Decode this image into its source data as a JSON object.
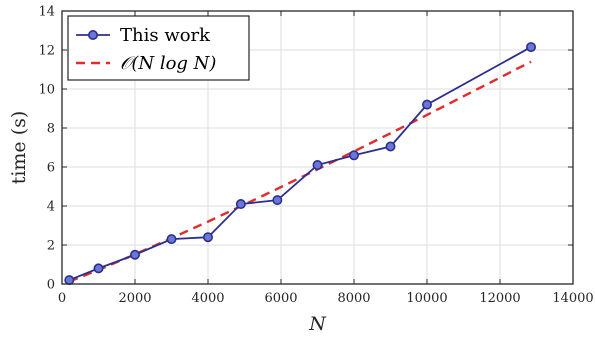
{
  "chart_data": {
    "type": "line",
    "title": "",
    "xlabel": "N",
    "ylabel": "time (s)",
    "xlim": [
      0,
      14000
    ],
    "ylim": [
      0,
      14
    ],
    "xticks": [
      0,
      2000,
      4000,
      6000,
      8000,
      10000,
      12000,
      14000
    ],
    "yticks": [
      0,
      2,
      4,
      6,
      8,
      10,
      12,
      14
    ],
    "grid": true,
    "legend_position": "top-left",
    "series": [
      {
        "name": "This work",
        "style": "solid line with circle markers",
        "color": "#2b2f8f",
        "marker_fill": "#6a77d6",
        "x": [
          200,
          1000,
          2000,
          3000,
          4000,
          4900,
          5900,
          7000,
          8000,
          9000,
          10000,
          12850
        ],
        "y": [
          0.2,
          0.8,
          1.5,
          2.3,
          2.4,
          4.1,
          4.3,
          6.1,
          6.6,
          7.05,
          9.2,
          12.15
        ]
      },
      {
        "name": "𝒪(N log N)",
        "style": "dashed line",
        "color": "#e32b2b",
        "x": [
          200,
          1000,
          2000,
          3000,
          4000,
          4900,
          5900,
          7000,
          8000,
          9000,
          10000,
          12850
        ],
        "y": [
          0.13,
          0.72,
          1.52,
          2.35,
          3.2,
          3.99,
          4.88,
          5.88,
          6.8,
          7.73,
          8.67,
          11.4
        ]
      }
    ]
  }
}
